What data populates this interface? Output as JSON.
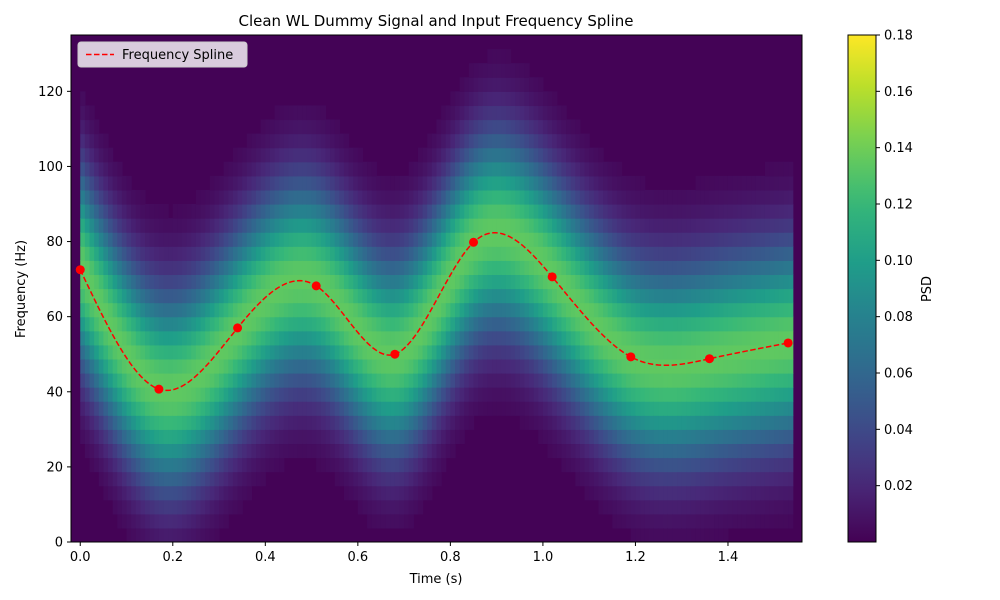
{
  "chart_data": {
    "type": "heatmap",
    "title": "Clean WL Dummy Signal and Input Frequency Spline",
    "xlabel": "Time (s)",
    "ylabel": "Frequency (Hz)",
    "xlim": [
      -0.02,
      1.56
    ],
    "ylim": [
      0,
      135
    ],
    "xticks": [
      0.0,
      0.2,
      0.4,
      0.6,
      0.8,
      1.0,
      1.2,
      1.4
    ],
    "xtick_labels": [
      "0.0",
      "0.2",
      "0.4",
      "0.6",
      "0.8",
      "1.0",
      "1.2",
      "1.4"
    ],
    "yticks": [
      0,
      20,
      40,
      60,
      80,
      100,
      120
    ],
    "ytick_labels": [
      "0",
      "20",
      "40",
      "60",
      "80",
      "100",
      "120"
    ],
    "colorbar": {
      "label": "PSD",
      "range": [
        0.0,
        0.18
      ],
      "ticks": [
        0.02,
        0.04,
        0.06,
        0.08,
        0.1,
        0.12,
        0.14,
        0.16,
        0.18
      ],
      "tick_labels": [
        "0.02",
        "0.04",
        "0.06",
        "0.08",
        "0.10",
        "0.12",
        "0.14",
        "0.16",
        "0.18"
      ],
      "colormap": "viridis"
    },
    "series": [
      {
        "name": "Frequency Spline",
        "style": "dashed",
        "color": "#ff0000",
        "knots_x": [
          0.0,
          0.17,
          0.34,
          0.51,
          0.68,
          0.85,
          1.02,
          1.19,
          1.36,
          1.53
        ],
        "knots_y": [
          72.5,
          40.7,
          57.0,
          68.2,
          50.0,
          79.8,
          70.6,
          49.3,
          48.8,
          53.0
        ]
      }
    ],
    "legend": {
      "position": "top-left"
    },
    "grid": false
  }
}
